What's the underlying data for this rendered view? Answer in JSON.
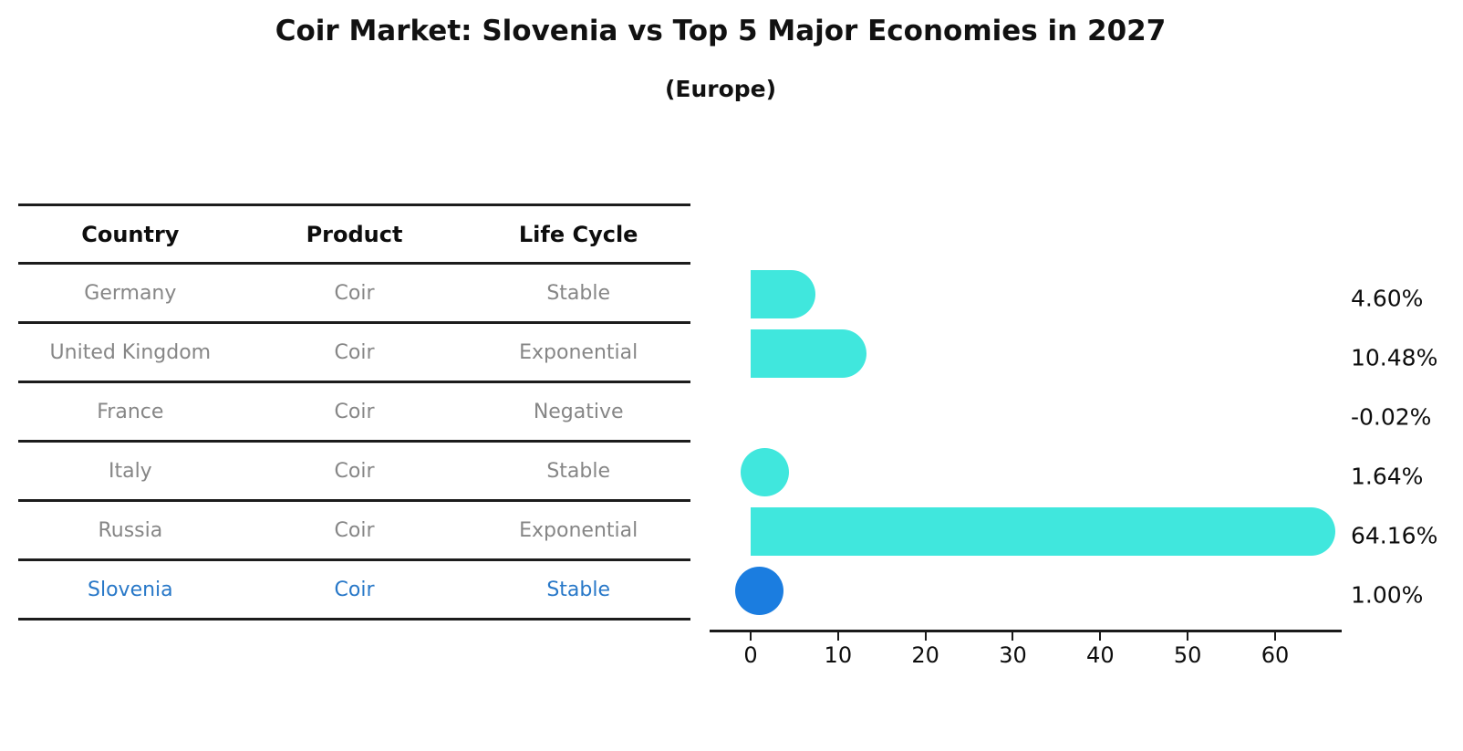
{
  "title": "Coir Market: Slovenia vs Top 5 Major Economies in 2027",
  "subtitle": "(Europe)",
  "table": {
    "headers": [
      "Country",
      "Product",
      "Life Cycle"
    ],
    "rows": [
      {
        "country": "Germany",
        "product": "Coir",
        "life_cycle": "Stable",
        "highlight": false
      },
      {
        "country": "United Kingdom",
        "product": "Coir",
        "life_cycle": "Exponential",
        "highlight": false
      },
      {
        "country": "France",
        "product": "Coir",
        "life_cycle": "Negative",
        "highlight": false
      },
      {
        "country": "Italy",
        "product": "Coir",
        "life_cycle": "Stable",
        "highlight": false
      },
      {
        "country": "Russia",
        "product": "Coir",
        "life_cycle": "Exponential",
        "highlight": false
      },
      {
        "country": "Slovenia",
        "product": "Coir",
        "life_cycle": "Stable",
        "highlight": true
      }
    ]
  },
  "chart_data": {
    "type": "bar",
    "orientation": "horizontal",
    "title": "Coir Market: Slovenia vs Top 5 Major Economies in 2027",
    "subtitle": "(Europe)",
    "categories": [
      "Germany",
      "United Kingdom",
      "France",
      "Italy",
      "Russia",
      "Slovenia"
    ],
    "values": [
      4.6,
      10.48,
      -0.02,
      1.64,
      64.16,
      1.0
    ],
    "value_labels": [
      "4.60%",
      "10.48%",
      "-0.02%",
      "1.64%",
      "64.16%",
      "1.00%"
    ],
    "x_ticks": [
      0,
      10,
      20,
      30,
      40,
      50,
      60
    ],
    "xlim": [
      -4.7,
      67.5
    ],
    "xlabel": "",
    "ylabel": "",
    "grid": false,
    "legend": "none",
    "bar_color": "#40e7dd",
    "highlight_color": "#1b7de0",
    "highlight_index": 5
  },
  "colors": {
    "bar": "#40e7dd",
    "highlight_bar": "#1b7de0",
    "highlight_text": "#2878c8",
    "table_text": "#868686",
    "heading_text": "#0d0d0d",
    "line": "#1c1c1c"
  }
}
